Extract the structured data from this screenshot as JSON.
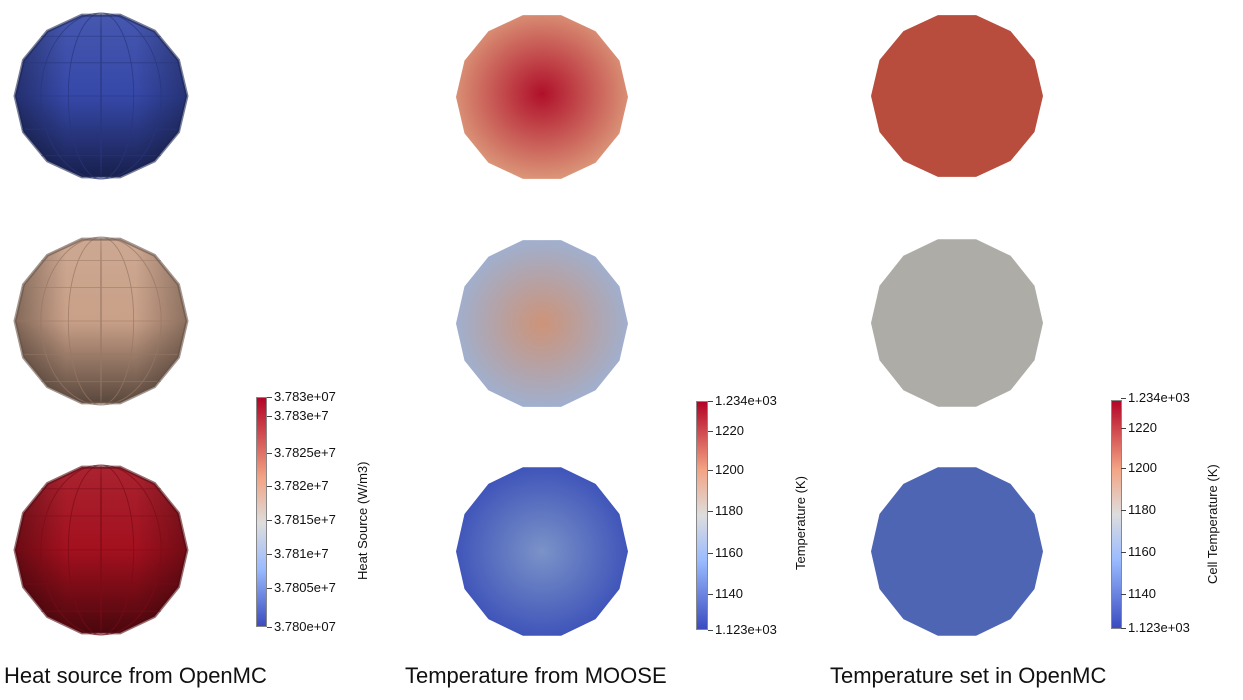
{
  "panels": [
    {
      "caption": "Heat source from OpenMC",
      "colorbar": {
        "title": "Heat Source (W/m3)",
        "ticks": [
          "3.783e+07",
          "3.783e+7",
          "3.7825e+7",
          "3.782e+7",
          "3.7815e+7",
          "3.781e+7",
          "3.7805e+7",
          "3.780e+07"
        ]
      },
      "spheres": [
        {
          "color": "#3648a8",
          "style": "faceted"
        },
        {
          "color": "#c9a088",
          "style": "faceted"
        },
        {
          "color": "#a3101e",
          "style": "faceted"
        }
      ]
    },
    {
      "caption": "Temperature from MOOSE",
      "colorbar": {
        "title": "Temperature (K)",
        "ticks": [
          "1.234e+03",
          "1220",
          "1200",
          "1180",
          "1160",
          "1140",
          "1.123e+03"
        ]
      },
      "spheres": [
        {
          "color_center": "#b0102a",
          "color_edge": "#dd9c7c",
          "style": "radial"
        },
        {
          "color_center": "#cd9378",
          "color_edge": "#9cb2d6",
          "style": "radial"
        },
        {
          "color_center": "#7b93c8",
          "color_edge": "#3a4fb8",
          "style": "radial"
        }
      ]
    },
    {
      "caption": "Temperature set in OpenMC",
      "colorbar": {
        "title": "Cell Temperature (K)",
        "ticks": [
          "1.234e+03",
          "1220",
          "1200",
          "1180",
          "1160",
          "1140",
          "1.123e+03"
        ]
      },
      "spheres": [
        {
          "color": "#b84d3d",
          "style": "flat"
        },
        {
          "color": "#adaca7",
          "style": "flat"
        },
        {
          "color": "#4e65b4",
          "style": "flat"
        }
      ]
    }
  ]
}
